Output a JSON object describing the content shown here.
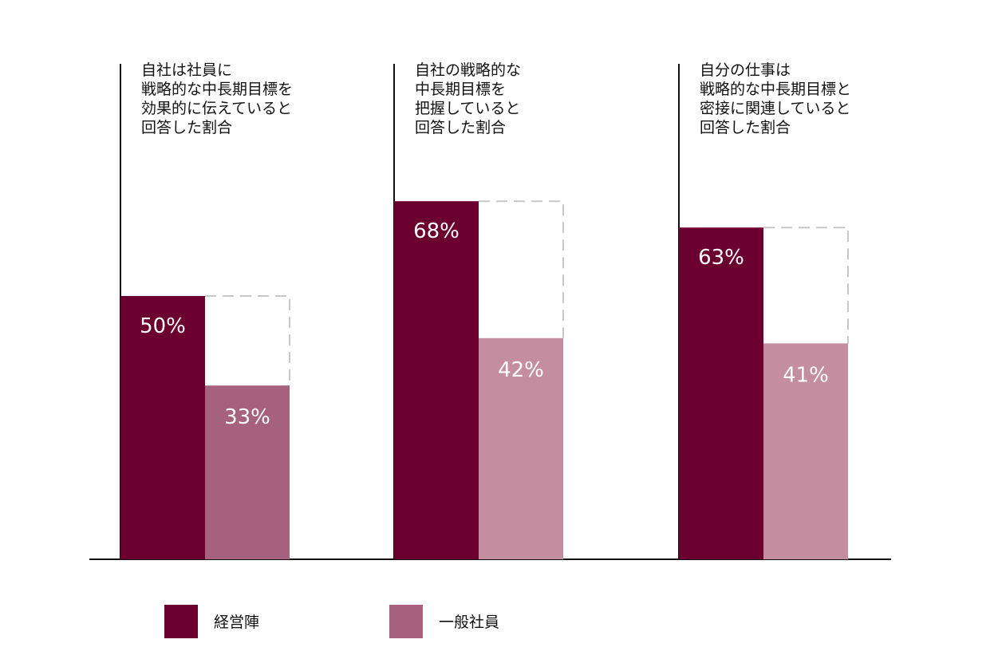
{
  "chart_data": {
    "type": "bar",
    "ylim": [
      0,
      100
    ],
    "grid": false,
    "legend_position": "bottom-left",
    "categories": [
      {
        "lines": [
          "自社は社員に",
          "戦略的な中長期目標を",
          "効果的に伝えていると",
          "回答した割合"
        ]
      },
      {
        "lines": [
          "自社の戦略的な",
          "中長期目標を",
          "把握していると",
          "回答した割合"
        ]
      },
      {
        "lines": [
          "自分の仕事は",
          "戦略的な中長期目標と",
          "密接に関連していると",
          "回答した割合"
        ]
      }
    ],
    "series": [
      {
        "name": "経営陣",
        "values": [
          50,
          68,
          63
        ],
        "labels": [
          "50%",
          "68%",
          "63%"
        ],
        "color": "#6b0030",
        "label_color": "#ffffff"
      },
      {
        "name": "一般社員",
        "values": [
          33,
          42,
          41
        ],
        "labels": [
          "33%",
          "42%",
          "41%"
        ],
        "colors": [
          "#a5617d",
          "#c58ea0",
          "#c58ea0"
        ],
        "label_color": "#ffffff"
      }
    ],
    "gap_outline": {
      "style": "dashed",
      "color": "#c8c8c8"
    },
    "legend": [
      {
        "label": "経営陣",
        "color": "#6b0030"
      },
      {
        "label": "一般社員",
        "color": "#a5617d"
      }
    ]
  }
}
